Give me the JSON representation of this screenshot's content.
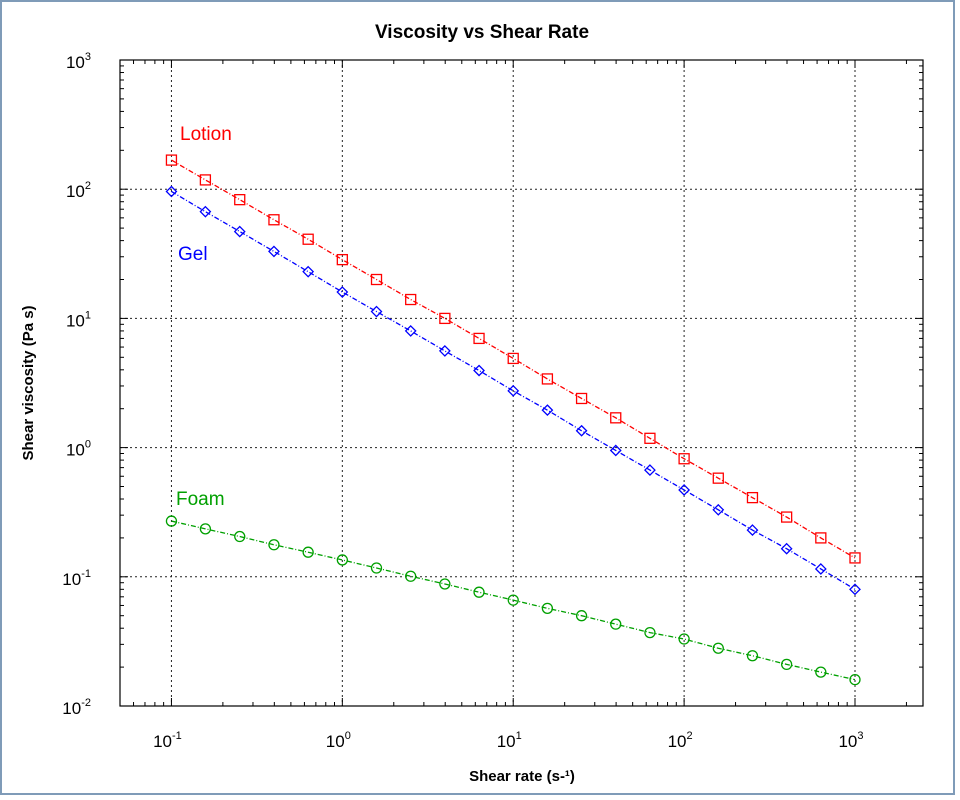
{
  "chart_data": {
    "type": "line",
    "title": "Viscosity vs Shear Rate",
    "xlabel": "Shear rate (s-¹)",
    "ylabel": "Shear viscosity (Pa s)",
    "xscale": "log",
    "yscale": "log",
    "xlim": [
      0.05,
      2500
    ],
    "ylim": [
      0.01,
      1000
    ],
    "grid": true,
    "xticks": [
      {
        "base": "10",
        "exp": "-1",
        "value": 0.1
      },
      {
        "base": "10",
        "exp": "0",
        "value": 1
      },
      {
        "base": "10",
        "exp": "1",
        "value": 10
      },
      {
        "base": "10",
        "exp": "2",
        "value": 100
      },
      {
        "base": "10",
        "exp": "3",
        "value": 1000
      }
    ],
    "yticks": [
      {
        "base": "10",
        "exp": "-2",
        "value": 0.01
      },
      {
        "base": "10",
        "exp": "-1",
        "value": 0.1
      },
      {
        "base": "10",
        "exp": "0",
        "value": 1
      },
      {
        "base": "10",
        "exp": "1",
        "value": 10
      },
      {
        "base": "10",
        "exp": "2",
        "value": 100
      },
      {
        "base": "10",
        "exp": "3",
        "value": 1000
      }
    ],
    "x": [
      0.1,
      0.158,
      0.251,
      0.398,
      0.631,
      1,
      1.585,
      2.512,
      3.981,
      6.31,
      10,
      15.85,
      25.12,
      39.81,
      63.1,
      100,
      158.5,
      251.2,
      398.1,
      631,
      1000
    ],
    "series": [
      {
        "name": "Lotion",
        "color": "#ff0000",
        "marker": "square",
        "values": [
          168,
          118,
          83,
          58,
          41,
          28.5,
          20,
          14,
          10,
          7,
          4.9,
          3.4,
          2.4,
          1.7,
          1.18,
          0.82,
          0.58,
          0.41,
          0.29,
          0.2,
          0.14
        ]
      },
      {
        "name": "Gel",
        "color": "#0000ff",
        "marker": "diamond",
        "values": [
          96,
          67,
          47,
          33,
          23,
          16,
          11.3,
          8,
          5.6,
          3.95,
          2.75,
          1.95,
          1.35,
          0.95,
          0.67,
          0.47,
          0.33,
          0.23,
          0.165,
          0.115,
          0.08
        ]
      },
      {
        "name": "Foam",
        "color": "#00a000",
        "marker": "circle",
        "values": [
          0.27,
          0.235,
          0.205,
          0.177,
          0.155,
          0.135,
          0.117,
          0.101,
          0.088,
          0.076,
          0.066,
          0.057,
          0.05,
          0.043,
          0.037,
          0.033,
          0.028,
          0.0245,
          0.021,
          0.0183,
          0.016
        ]
      }
    ]
  }
}
